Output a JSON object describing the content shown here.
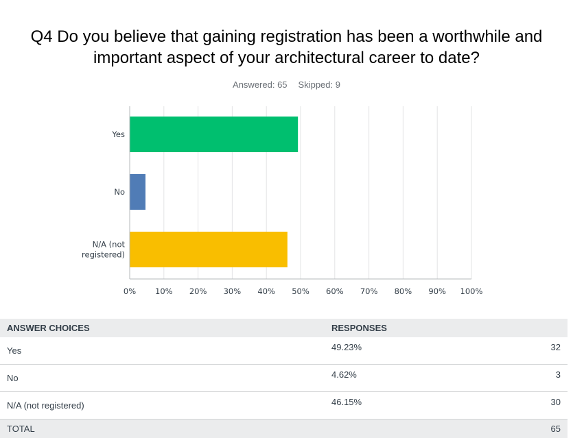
{
  "question": {
    "title": "Q4 Do you believe that gaining registration has been a worthwhile and important aspect of your architectural career to date?",
    "answered": "Answered: 65",
    "skipped": "Skipped: 9"
  },
  "chart_data": {
    "type": "bar",
    "orientation": "horizontal",
    "categories": [
      "Yes",
      "No",
      "N/A (not registered)"
    ],
    "category_lines": [
      [
        "Yes"
      ],
      [
        "No"
      ],
      [
        "N/A (not",
        "registered)"
      ]
    ],
    "values": [
      49.23,
      4.62,
      46.15
    ],
    "colors": [
      "#00bf6f",
      "#507cb6",
      "#f9be00"
    ],
    "xlim": [
      0,
      100
    ],
    "xticks": [
      "0%",
      "10%",
      "20%",
      "30%",
      "40%",
      "50%",
      "60%",
      "70%",
      "80%",
      "90%",
      "100%"
    ],
    "grid": true,
    "title": "",
    "xlabel": "",
    "ylabel": ""
  },
  "table": {
    "headers": {
      "choice": "ANSWER CHOICES",
      "responses": "RESPONSES"
    },
    "rows": [
      {
        "choice": "Yes",
        "percent": "49.23%",
        "count": "32"
      },
      {
        "choice": "No",
        "percent": "4.62%",
        "count": "3"
      },
      {
        "choice": "N/A (not registered)",
        "percent": "46.15%",
        "count": "30"
      }
    ],
    "total": {
      "label": "TOTAL",
      "count": "65"
    }
  }
}
